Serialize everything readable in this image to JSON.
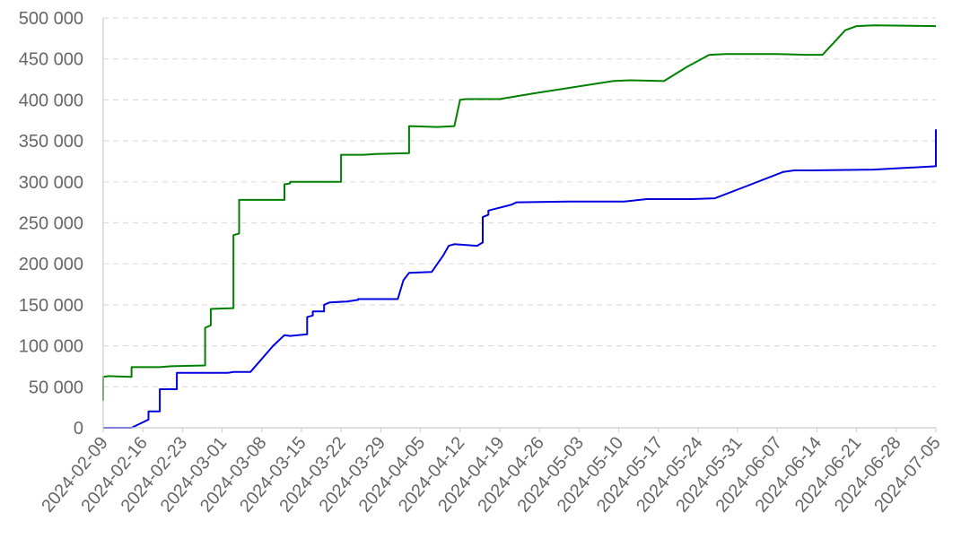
{
  "chart_data": {
    "type": "line",
    "title": "",
    "xlabel": "",
    "ylabel": "",
    "grid": "horizontal dashed",
    "x_range": [
      "2024-02-09",
      "2024-07-05"
    ],
    "ylim": [
      0,
      500000
    ],
    "y_ticks": [
      0,
      50000,
      100000,
      150000,
      200000,
      250000,
      300000,
      350000,
      400000,
      450000,
      500000
    ],
    "y_tick_labels": [
      "0",
      "50 000",
      "100 000",
      "150 000",
      "200 000",
      "250 000",
      "300 000",
      "350 000",
      "400 000",
      "450 000",
      "500 000"
    ],
    "x_ticks": [
      "2024-02-09",
      "2024-02-16",
      "2024-02-23",
      "2024-03-01",
      "2024-03-08",
      "2024-03-15",
      "2024-03-22",
      "2024-03-29",
      "2024-04-05",
      "2024-04-12",
      "2024-04-19",
      "2024-04-26",
      "2024-05-03",
      "2024-05-10",
      "2024-05-17",
      "2024-05-24",
      "2024-05-31",
      "2024-06-07",
      "2024-06-14",
      "2024-06-21",
      "2024-06-28",
      "2024-07-05"
    ],
    "series": [
      {
        "color": "#008000",
        "points": [
          [
            "2024-02-09",
            33000
          ],
          [
            "2024-02-09",
            62000
          ],
          [
            "2024-02-10",
            63000
          ],
          [
            "2024-02-14",
            62000
          ],
          [
            "2024-02-14",
            74000
          ],
          [
            "2024-02-19",
            74000
          ],
          [
            "2024-02-21",
            75000
          ],
          [
            "2024-02-27",
            76000
          ],
          [
            "2024-02-27",
            80000
          ],
          [
            "2024-02-27",
            122000
          ],
          [
            "2024-02-28",
            125000
          ],
          [
            "2024-02-28",
            145000
          ],
          [
            "2024-03-03",
            146000
          ],
          [
            "2024-03-03",
            155000
          ],
          [
            "2024-03-03",
            235000
          ],
          [
            "2024-03-04",
            237000
          ],
          [
            "2024-03-04",
            278000
          ],
          [
            "2024-03-12",
            278000
          ],
          [
            "2024-03-12",
            285000
          ],
          [
            "2024-03-12",
            297000
          ],
          [
            "2024-03-13",
            298000
          ],
          [
            "2024-03-13",
            300000
          ],
          [
            "2024-03-22",
            300000
          ],
          [
            "2024-03-22",
            333000
          ],
          [
            "2024-03-26",
            333000
          ],
          [
            "2024-03-28",
            334000
          ],
          [
            "2024-04-03",
            335000
          ],
          [
            "2024-04-03",
            368000
          ],
          [
            "2024-04-08",
            367000
          ],
          [
            "2024-04-11",
            368000
          ],
          [
            "2024-04-12",
            400000
          ],
          [
            "2024-04-13",
            401000
          ],
          [
            "2024-04-19",
            401000
          ],
          [
            "2024-04-25",
            408000
          ],
          [
            "2024-05-09",
            423000
          ],
          [
            "2024-05-12",
            424000
          ],
          [
            "2024-05-18",
            423000
          ],
          [
            "2024-05-22",
            440000
          ],
          [
            "2024-05-26",
            455000
          ],
          [
            "2024-05-29",
            456000
          ],
          [
            "2024-06-07",
            456000
          ],
          [
            "2024-06-12",
            455000
          ],
          [
            "2024-06-15",
            455000
          ],
          [
            "2024-06-17",
            470000
          ],
          [
            "2024-06-19",
            485000
          ],
          [
            "2024-06-21",
            490000
          ],
          [
            "2024-06-24",
            491000
          ],
          [
            "2024-07-05",
            490000
          ]
        ]
      },
      {
        "color": "#0000e0",
        "points": [
          [
            "2024-02-09",
            0
          ],
          [
            "2024-02-14",
            0
          ],
          [
            "2024-02-17",
            10000
          ],
          [
            "2024-02-17",
            20000
          ],
          [
            "2024-02-19",
            20000
          ],
          [
            "2024-02-19",
            47000
          ],
          [
            "2024-02-22",
            47000
          ],
          [
            "2024-02-22",
            67000
          ],
          [
            "2024-03-02",
            67000
          ],
          [
            "2024-03-03",
            68000
          ],
          [
            "2024-03-06",
            68000
          ],
          [
            "2024-03-10",
            100000
          ],
          [
            "2024-03-12",
            113000
          ],
          [
            "2024-03-13",
            112000
          ],
          [
            "2024-03-16",
            114000
          ],
          [
            "2024-03-16",
            117000
          ],
          [
            "2024-03-16",
            135000
          ],
          [
            "2024-03-17",
            137000
          ],
          [
            "2024-03-17",
            142000
          ],
          [
            "2024-03-19",
            142000
          ],
          [
            "2024-03-19",
            150000
          ],
          [
            "2024-03-20",
            153000
          ],
          [
            "2024-03-23",
            154000
          ],
          [
            "2024-03-25",
            156000
          ],
          [
            "2024-03-25",
            157000
          ],
          [
            "2024-04-01",
            157000
          ],
          [
            "2024-04-02",
            180000
          ],
          [
            "2024-04-03",
            189000
          ],
          [
            "2024-04-07",
            190000
          ],
          [
            "2024-04-09",
            210000
          ],
          [
            "2024-04-10",
            222000
          ],
          [
            "2024-04-11",
            224000
          ],
          [
            "2024-04-15",
            222000
          ],
          [
            "2024-04-16",
            226000
          ],
          [
            "2024-04-16",
            257000
          ],
          [
            "2024-04-17",
            260000
          ],
          [
            "2024-04-17",
            265000
          ],
          [
            "2024-04-21",
            272000
          ],
          [
            "2024-04-22",
            275000
          ],
          [
            "2024-05-01",
            276000
          ],
          [
            "2024-05-11",
            276000
          ],
          [
            "2024-05-15",
            279000
          ],
          [
            "2024-05-23",
            279000
          ],
          [
            "2024-05-27",
            280000
          ],
          [
            "2024-06-02",
            296000
          ],
          [
            "2024-06-08",
            312000
          ],
          [
            "2024-06-10",
            314000
          ],
          [
            "2024-06-13",
            314000
          ],
          [
            "2024-06-24",
            315000
          ],
          [
            "2024-07-05",
            319000
          ],
          [
            "2024-07-05",
            364000
          ]
        ]
      }
    ]
  }
}
